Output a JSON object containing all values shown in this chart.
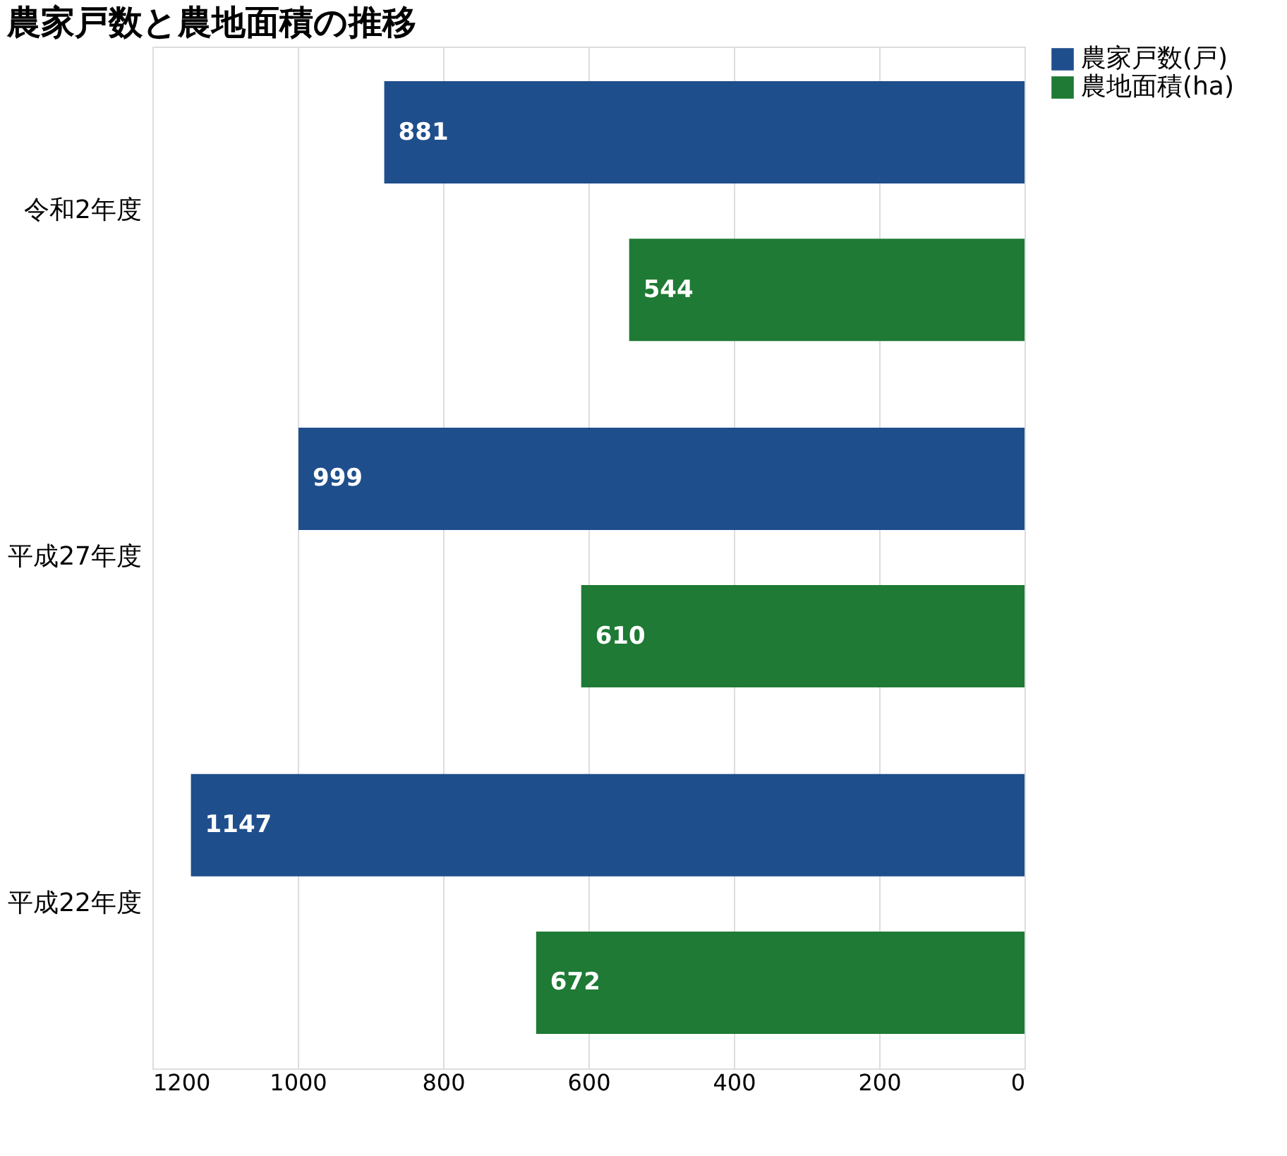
{
  "chart_data": {
    "type": "bar",
    "orientation": "horizontal",
    "title": "農家戸数と農地面積の推移",
    "categories": [
      "令和2年度",
      "平成27年度",
      "平成22年度"
    ],
    "series": [
      {
        "name": "農家戸数(戸)",
        "color": "#1f4e8c",
        "values": [
          881,
          999,
          1147
        ]
      },
      {
        "name": "農地面積(ha)",
        "color": "#1e7a34",
        "values": [
          544,
          610,
          672
        ]
      }
    ],
    "xlim": [
      1200,
      0
    ],
    "xticks": [
      0,
      200,
      400,
      600,
      800,
      1000,
      1200
    ],
    "grid": "x",
    "data_labels": true,
    "legend": "right"
  }
}
